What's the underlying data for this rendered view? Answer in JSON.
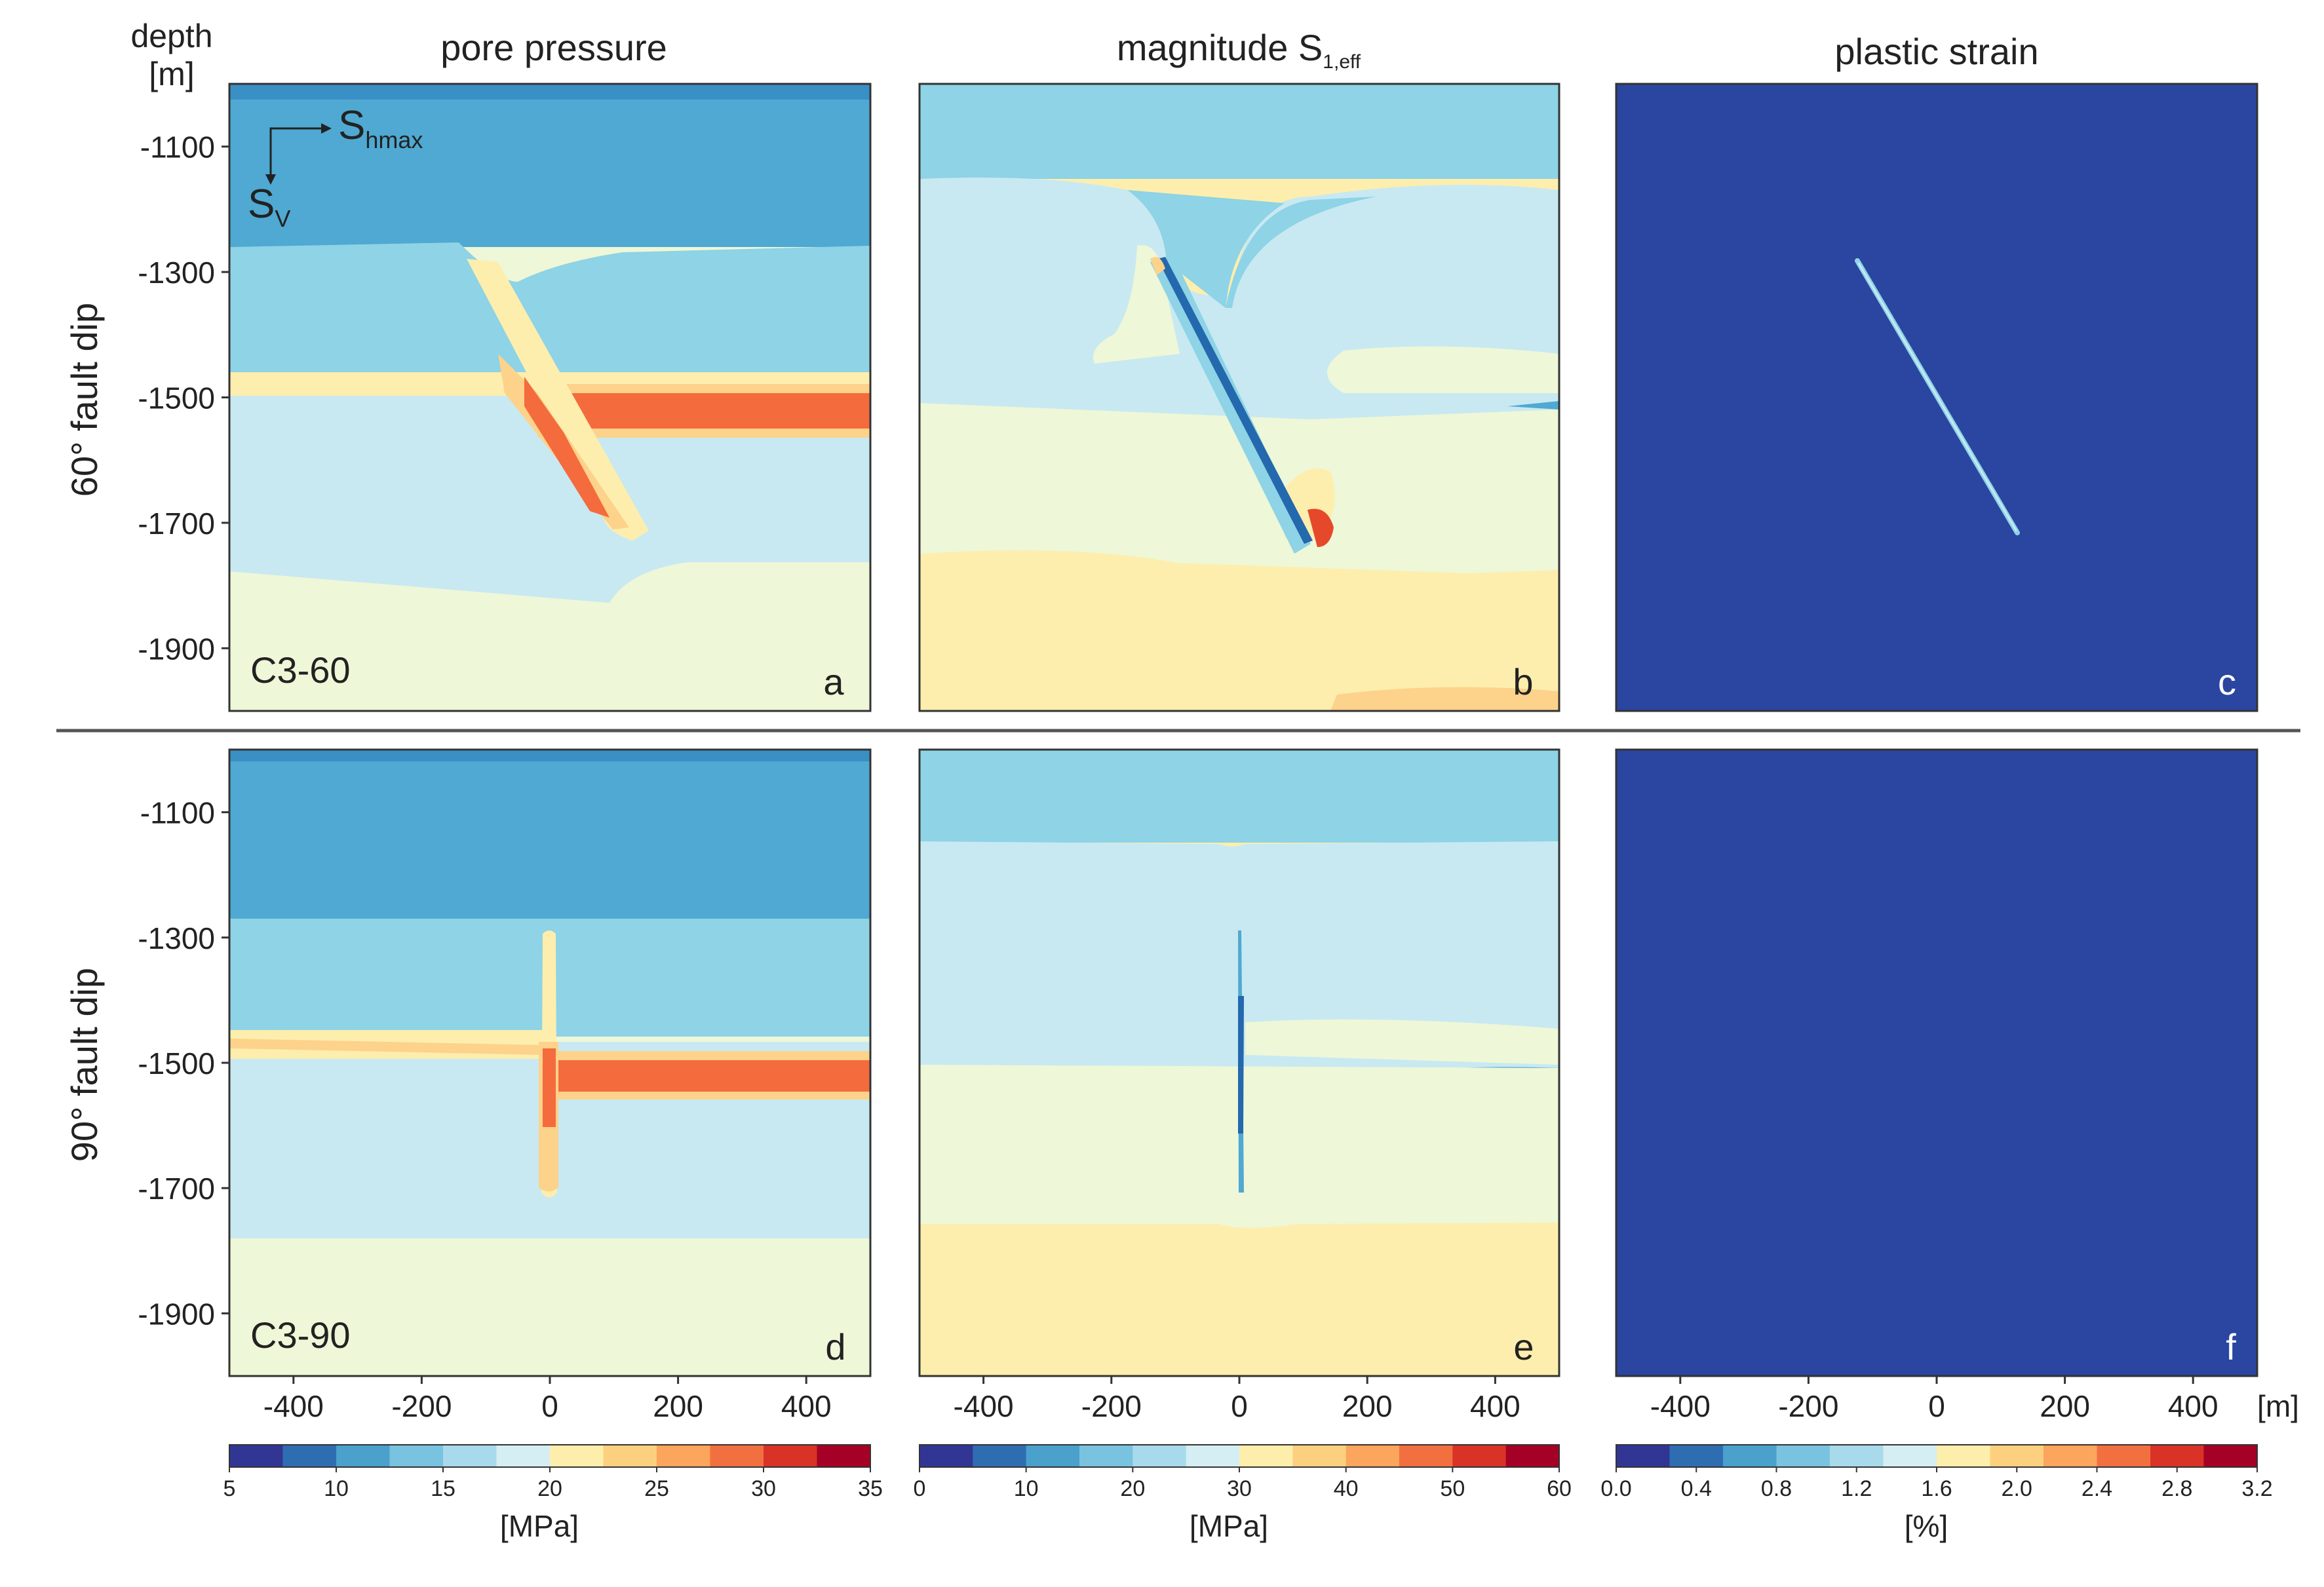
{
  "figure": {
    "depth_label": [
      "depth",
      "[m]"
    ],
    "x_unit_label": "[m]",
    "row_labels": [
      "60° fault dip",
      "90° fault dip"
    ],
    "axis_arrows": {
      "horizontal": "S",
      "horizontal_sub": "hmax",
      "vertical": "S",
      "vertical_sub": "V"
    }
  },
  "chart_data": [
    {
      "type": "heatmap",
      "panel": "a",
      "title": "pore pressure",
      "case_label": "C3-60",
      "quantity": "pore pressure",
      "fault_dip_deg": 60,
      "x_ticks": [
        -400,
        -200,
        0,
        200,
        400
      ],
      "y_ticks": [
        -1100,
        -1300,
        -1500,
        -1700,
        -1900
      ],
      "xlim": [
        -500,
        500
      ],
      "ylim": [
        -2000,
        -1000
      ],
      "description_values": {
        "top_layer_mpa": 12.5,
        "mid_layer_mpa": 15,
        "aquifer_left_mpa": 22.5,
        "aquifer_right_mpa": 30,
        "bottom_layer_mpa": 20
      }
    },
    {
      "type": "heatmap",
      "panel": "b",
      "title": "magnitude S",
      "title_sub": "1,eff",
      "quantity": "magnitude S1,eff",
      "fault_dip_deg": 60,
      "x_ticks": [
        -400,
        -200,
        0,
        200,
        400
      ],
      "y_ticks": [
        -1100,
        -1300,
        -1500,
        -1700,
        -1900
      ],
      "xlim": [
        -500,
        500
      ],
      "ylim": [
        -2000,
        -1000
      ]
    },
    {
      "type": "heatmap",
      "panel": "c",
      "title": "plastic strain",
      "quantity": "plastic strain",
      "fault_dip_deg": 60,
      "x_ticks": [
        -400,
        -200,
        0,
        200,
        400
      ],
      "y_ticks": [
        -1100,
        -1300,
        -1500,
        -1700,
        -1900
      ],
      "xlim": [
        -500,
        500
      ],
      "ylim": [
        -2000,
        -1000
      ],
      "background_percent": 0.0
    },
    {
      "type": "heatmap",
      "panel": "d",
      "case_label": "C3-90",
      "quantity": "pore pressure",
      "fault_dip_deg": 90,
      "x_ticks": [
        -400,
        -200,
        0,
        200,
        400
      ],
      "y_ticks": [
        -1100,
        -1300,
        -1500,
        -1700,
        -1900
      ],
      "xlim": [
        -500,
        500
      ],
      "ylim": [
        -2000,
        -1000
      ]
    },
    {
      "type": "heatmap",
      "panel": "e",
      "quantity": "magnitude S1,eff",
      "fault_dip_deg": 90,
      "x_ticks": [
        -400,
        -200,
        0,
        200,
        400
      ],
      "y_ticks": [
        -1100,
        -1300,
        -1500,
        -1700,
        -1900
      ],
      "xlim": [
        -500,
        500
      ],
      "ylim": [
        -2000,
        -1000
      ]
    },
    {
      "type": "heatmap",
      "panel": "f",
      "quantity": "plastic strain",
      "fault_dip_deg": 90,
      "x_ticks": [
        -400,
        -200,
        0,
        200,
        400
      ],
      "y_ticks": [
        -1100,
        -1300,
        -1500,
        -1700,
        -1900
      ],
      "xlim": [
        -500,
        500
      ],
      "ylim": [
        -2000,
        -1000
      ],
      "background_percent": 0.0
    }
  ],
  "colorbars": [
    {
      "unit": "[MPa]",
      "ticks": [
        "5",
        "10",
        "15",
        "20",
        "25",
        "30",
        "35"
      ],
      "range": [
        5,
        35
      ]
    },
    {
      "unit": "[MPa]",
      "ticks": [
        "0",
        "10",
        "20",
        "30",
        "40",
        "50",
        "60"
      ],
      "range": [
        0,
        60
      ]
    },
    {
      "unit": "[%]",
      "ticks": [
        "0.0",
        "0.4",
        "0.8",
        "1.2",
        "1.6",
        "2.0",
        "2.4",
        "2.8",
        "3.2"
      ],
      "range": [
        0.0,
        3.2
      ]
    }
  ],
  "colormap": [
    "#313695",
    "#2f6db2",
    "#4aa1cc",
    "#79c3e0",
    "#a9daec",
    "#d4eef4",
    "#f1f8d6",
    "#fdeeac",
    "#fdd07f",
    "#fca55d",
    "#f27040",
    "#d93227",
    "#a50026"
  ],
  "panel_colors": {
    "c1": "#4aa1cc",
    "c2": "#8ed3e6",
    "c3": "#c8e9f2",
    "c4": "#eef7d7",
    "c5": "#fdeead",
    "c6": "#fdd28a",
    "c7": "#f46b3d",
    "c8": "#e5482b",
    "plastic_bg": "#2a46a0",
    "fault_blue": "#2468ad"
  }
}
